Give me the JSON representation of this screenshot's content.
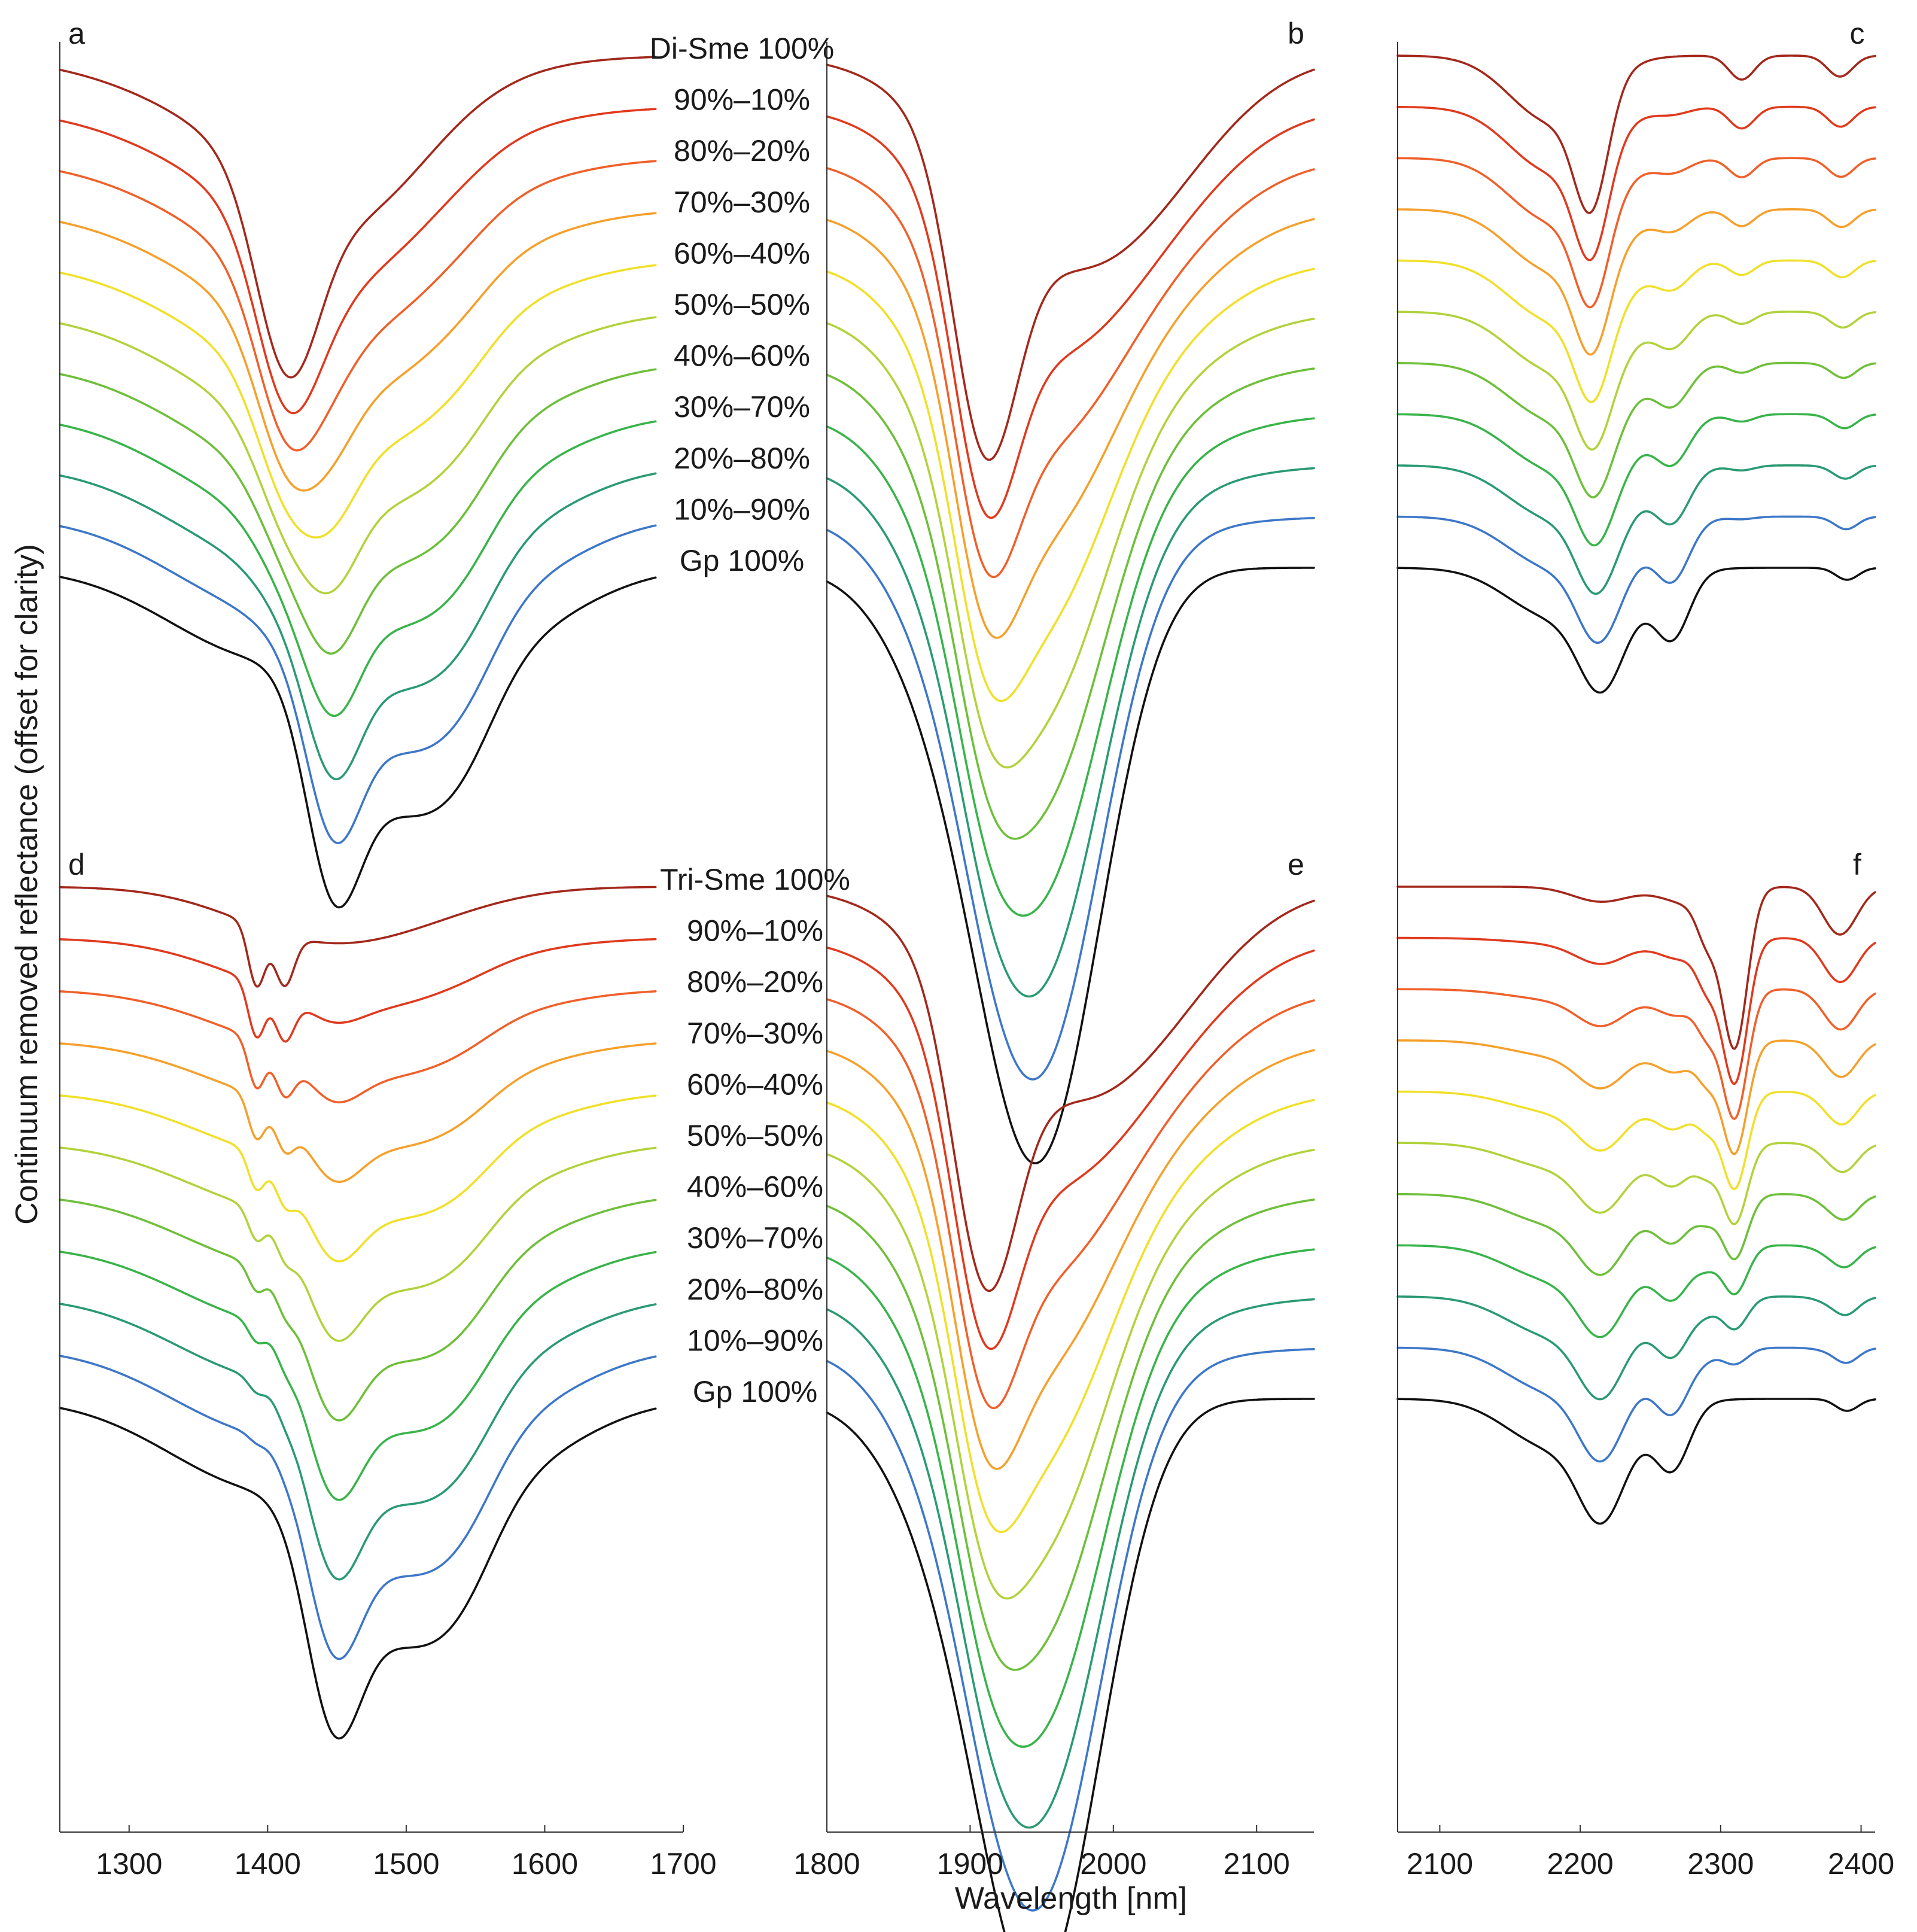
{
  "chart_data": {
    "type": "line",
    "xlabel": "Wavelength [nm]",
    "ylabel": "Continuum removed reflectance (offset for clarity)",
    "mixture_labels": [
      "90%–10%",
      "80%–20%",
      "70%–30%",
      "60%–40%",
      "50%–50%",
      "40%–60%",
      "30%–70%",
      "20%–80%",
      "10%–90%"
    ],
    "end_member_labels": {
      "top_row": "Di-Sme 100%",
      "bottom_row": "Tri-Sme 100%",
      "common": "Gp 100%"
    },
    "series_colors": [
      "#a3281c",
      "#e03a1e",
      "#f0602a",
      "#f5a02c",
      "#f0e02a",
      "#b2d23c",
      "#6ebf3a",
      "#38b44a",
      "#2a9a72",
      "#3d77c8",
      "#111111"
    ],
    "ranges": [
      {
        "xlim": [
          1250,
          1700
        ],
        "ticks": [
          1300,
          1400,
          1500,
          1600,
          1700
        ]
      },
      {
        "xlim": [
          1800,
          2140
        ],
        "ticks": [
          1800,
          1900,
          2000,
          2100
        ]
      },
      {
        "xlim": [
          2070,
          2410
        ],
        "ticks": [
          2100,
          2200,
          2300,
          2400
        ]
      }
    ],
    "panels": [
      {
        "id": "a",
        "row": "top",
        "range": 0,
        "legend_top": "Di-Sme 100%",
        "features": [
          "1414 nm (Di-Sme)",
          "1445 nm (Gp)",
          "1490 nm (Gp)",
          "1535 nm (Gp)"
        ]
      },
      {
        "id": "b",
        "row": "top",
        "range": 1,
        "features": [
          "1910 nm (Di-Sme)",
          "1945 nm (Gp)"
        ]
      },
      {
        "id": "c",
        "row": "top",
        "range": 2,
        "features": [
          "2208 nm (Di-Sme)",
          "2215 nm (Gp)",
          "2266 nm (Gp)",
          "2315 nm",
          "2385 nm"
        ]
      },
      {
        "id": "d",
        "row": "bottom",
        "range": 0,
        "legend_top": "Tri-Sme 100%",
        "features": [
          "1392 nm (Tri-Sme)",
          "1410 nm (Tri-Sme)",
          "1445 nm (Gp)",
          "1490 nm (Gp)",
          "1535 nm (Gp)"
        ]
      },
      {
        "id": "e",
        "row": "bottom",
        "range": 1,
        "features": [
          "1910 nm (Tri-Sme)",
          "1945 nm (Gp)"
        ]
      },
      {
        "id": "f",
        "row": "bottom",
        "range": 2,
        "features": [
          "2290 nm (Tri-Sme)",
          "2310 nm (Tri-Sme)",
          "2385 nm (Tri-Sme)",
          "2215 nm (Gp)",
          "2266 nm (Gp)"
        ]
      }
    ]
  }
}
